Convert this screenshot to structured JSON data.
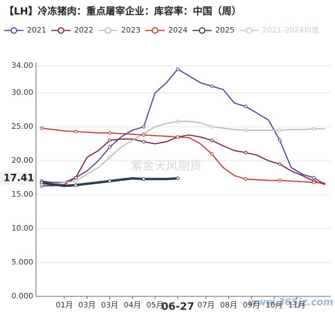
{
  "chart_data": {
    "type": "line",
    "title": "【LH】冷冻猪肉：重点屠宰企业：库容率：中国（周）",
    "x": [
      1,
      3,
      5,
      7,
      9,
      11,
      13,
      15,
      17,
      19,
      21,
      23,
      25,
      27,
      29,
      31,
      33,
      35,
      37,
      39,
      41,
      43,
      45,
      47,
      49,
      51
    ],
    "xlim": [
      0,
      52
    ],
    "xticks": [
      {
        "value": 5,
        "label": "01月"
      },
      {
        "value": 9,
        "label": "03月"
      },
      {
        "value": 13,
        "label": "03月"
      },
      {
        "value": 17,
        "label": "04月"
      },
      {
        "value": 21,
        "label": "05月"
      },
      {
        "value": 25,
        "label": "06-27"
      },
      {
        "value": 30,
        "label": "07月"
      },
      {
        "value": 34,
        "label": "08月"
      },
      {
        "value": 38,
        "label": "09月"
      },
      {
        "value": 42,
        "label": "10月"
      },
      {
        "value": 46,
        "label": "11月"
      }
    ],
    "ylim": [
      0,
      34
    ],
    "yticks": [
      {
        "value": 0,
        "label": "0.000"
      },
      {
        "value": 5,
        "label": "5.000"
      },
      {
        "value": 10,
        "label": "10.00"
      },
      {
        "value": 15,
        "label": "15.00"
      },
      {
        "value": 20,
        "label": "20.00"
      },
      {
        "value": 25,
        "label": "25.00"
      },
      {
        "value": 30,
        "label": "30.00"
      },
      {
        "value": 34,
        "label": "34.00"
      }
    ],
    "grid": true,
    "series": [
      {
        "name": "2021",
        "color": "#4b3f9c",
        "values": [
          17,
          16.8,
          16.8,
          17.5,
          18.5,
          20,
          22,
          23.5,
          24.5,
          25,
          30,
          31.5,
          33.5,
          32.5,
          31.5,
          31,
          30.5,
          28.5,
          28,
          27,
          26,
          23,
          19,
          18,
          17.5,
          16.5
        ]
      },
      {
        "name": "2022",
        "color": "#7b1d52",
        "values": [
          16.3,
          16.3,
          16.5,
          17.5,
          20.5,
          21.5,
          23,
          23.2,
          23.2,
          22.8,
          22.5,
          22.8,
          23.5,
          23.8,
          23.5,
          23,
          22.2,
          21.5,
          21.2,
          20.8,
          20,
          19.5,
          18.5,
          17.8,
          17,
          16.5
        ]
      },
      {
        "name": "2023",
        "color": "#c4b5a5",
        "values": [
          16.5,
          16.5,
          16.8,
          17,
          18,
          19,
          20.5,
          22,
          23,
          24,
          25,
          25.5,
          25.8,
          25.8,
          25.6,
          25,
          24.8,
          24.6,
          24.5,
          24.5,
          24.5,
          24.5,
          24.6,
          24.6,
          24.7,
          24.7
        ]
      },
      {
        "name": "2024",
        "color": "#c0392b",
        "values": [
          24.8,
          24.6,
          24.4,
          24.3,
          24.2,
          24.1,
          24.1,
          24,
          23.9,
          23.8,
          23.7,
          23.6,
          23.5,
          23.4,
          22.5,
          21,
          19,
          17.8,
          17.3,
          17.2,
          17.1,
          17.1,
          17,
          16.9,
          16.8,
          16.7
        ]
      },
      {
        "name": "2025",
        "color": "#2d3e4e",
        "values": [
          16.8,
          16.5,
          16.3,
          16.4,
          16.6,
          16.8,
          17,
          17.2,
          17.4,
          17.3,
          17.3,
          17.3,
          17.41,
          null,
          null,
          null,
          null,
          null,
          null,
          null,
          null,
          null,
          null,
          null,
          null,
          null
        ]
      }
    ],
    "hidden_series": [
      {
        "name": "2021-2024均值",
        "color": "#cccccc"
      }
    ],
    "watermarks": [
      "紫金天风期货",
      "www.365jz.com"
    ]
  }
}
